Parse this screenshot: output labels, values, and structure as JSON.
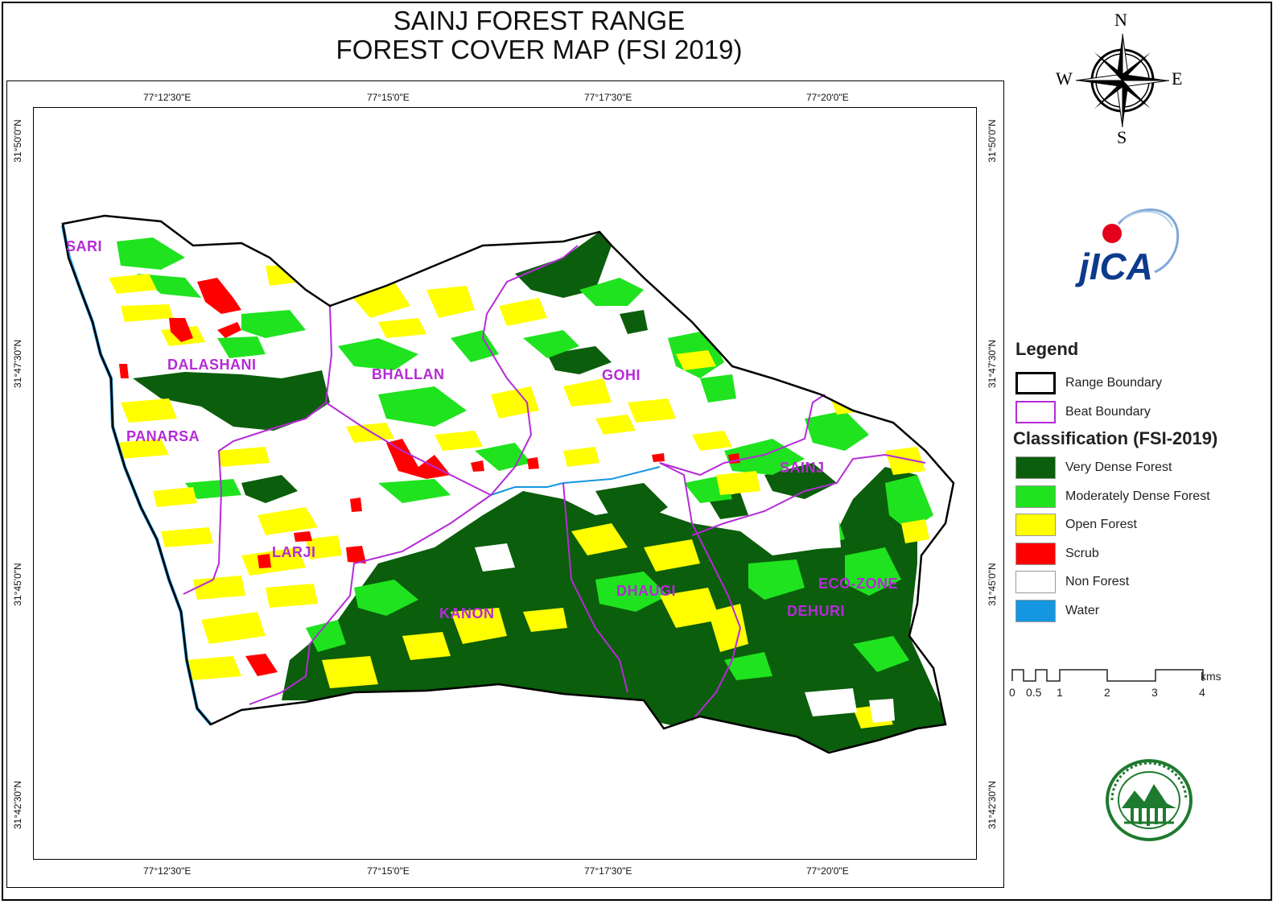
{
  "title": {
    "line1": "SAINJ FOREST RANGE",
    "line2": "FOREST COVER MAP (FSI 2019)"
  },
  "north_arrow": {
    "n": "N",
    "s": "S",
    "e": "E",
    "w": "W",
    "icon": "compass-rose-icon"
  },
  "logos": {
    "jica": "JICA",
    "forest_department": "forest-department-seal-icon"
  },
  "grid": {
    "longitudes": [
      "77°12'30\"E",
      "77°15'0\"E",
      "77°17'30\"E",
      "77°20'0\"E"
    ],
    "latitudes": [
      "31°50'0\"N",
      "31°47'30\"N",
      "31°45'0\"N",
      "31°42'30\"N"
    ]
  },
  "beats": [
    "SARI",
    "DALASHANI",
    "PANARSA",
    "BHALLAN",
    "GOHI",
    "LARJI",
    "SAINJ",
    "KANON",
    "DHAUGI",
    "ECO-ZONE",
    "DEHURI"
  ],
  "legend": {
    "title": "Legend",
    "boundaries": [
      {
        "label": "Range Boundary",
        "color": "#000000"
      },
      {
        "label": "Beat Boundary",
        "color": "#b52bd6"
      }
    ],
    "classification_title": "Classification (FSI-2019)",
    "classes": [
      {
        "label": "Very Dense Forest",
        "color": "#0b5e0b"
      },
      {
        "label": "Moderately Dense Forest",
        "color": "#1fe31f"
      },
      {
        "label": "Open Forest",
        "color": "#ffff00"
      },
      {
        "label": "Scrub",
        "color": "#ff0000"
      },
      {
        "label": "Non Forest",
        "color": "#ffffff"
      },
      {
        "label": "Water",
        "color": "#1596e0"
      }
    ]
  },
  "scale_bar": {
    "ticks": [
      "0",
      "0.5",
      "1",
      "2",
      "3",
      "4"
    ],
    "unit": "kms"
  }
}
